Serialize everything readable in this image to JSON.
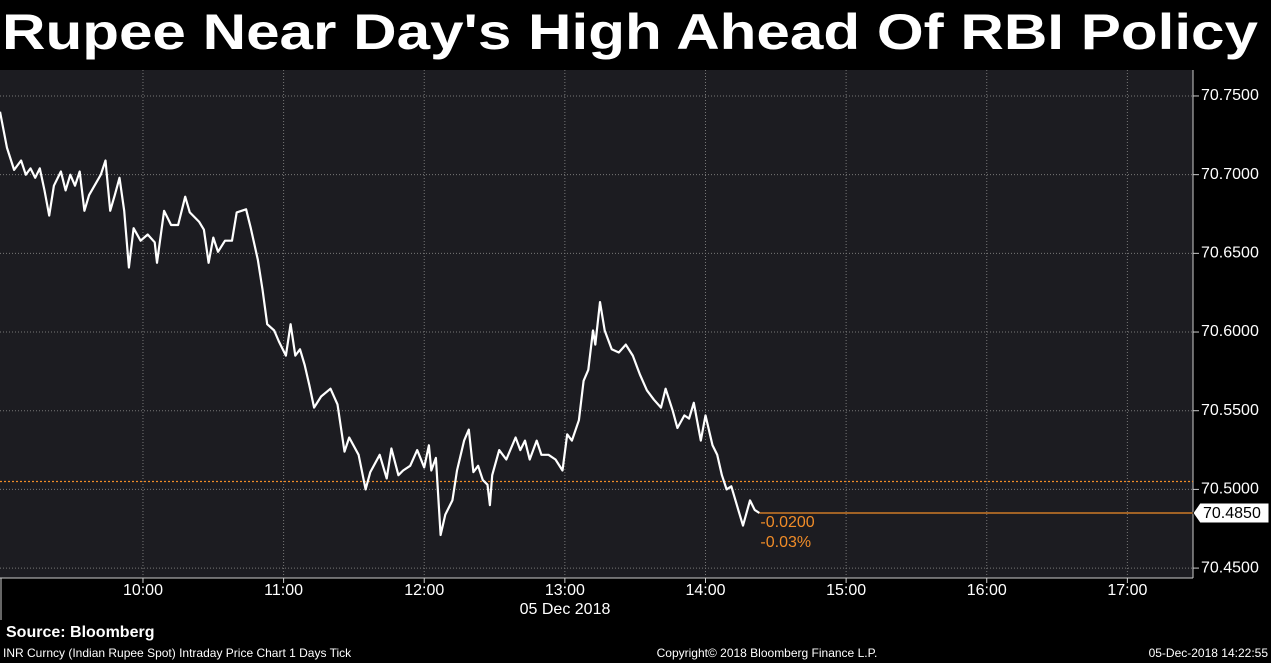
{
  "chart_data": {
    "type": "line",
    "title": "Rupee Near Day's High Ahead Of RBI Policy",
    "x_axis_label": "05 Dec 2018",
    "source": "Source: Bloomberg",
    "footer_left": "INR Curncy (Indian Rupee Spot) Intraday Price Chart 1 Days  Tick",
    "footer_center": "Copyright© 2018 Bloomberg Finance L.P.",
    "footer_right": "05-Dec-2018 14:22:55",
    "color": "#ffffff",
    "x": [
      "08:59",
      "09:02",
      "09:05",
      "09:08",
      "09:10",
      "09:12",
      "09:14",
      "09:16",
      "09:18",
      "09:20",
      "09:22",
      "09:25",
      "09:27",
      "09:29",
      "09:31",
      "09:33",
      "09:35",
      "09:37",
      "09:42",
      "09:44",
      "09:46",
      "09:48",
      "09:50",
      "09:52",
      "09:54",
      "09:56",
      "09:59",
      "10:02",
      "10:05",
      "10:06",
      "10:09",
      "10:12",
      "10:15",
      "10:18",
      "10:20",
      "10:24",
      "10:26",
      "10:28",
      "10:30",
      "10:32",
      "10:35",
      "10:38",
      "10:40",
      "10:44",
      "10:46",
      "10:49",
      "10:51",
      "10:53",
      "10:56",
      "10:58",
      "11:01",
      "11:03",
      "11:05",
      "11:07",
      "11:09",
      "11:11",
      "11:13",
      "11:16",
      "11:20",
      "11:23",
      "11:26",
      "11:28",
      "11:32",
      "11:35",
      "11:37",
      "11:41",
      "11:44",
      "11:46",
      "11:49",
      "11:51",
      "11:54",
      "11:57",
      "12:00",
      "12:02",
      "12:03",
      "12:05",
      "12:07",
      "12:09",
      "12:12",
      "12:14",
      "12:17",
      "12:19",
      "12:21",
      "12:23",
      "12:25",
      "12:27",
      "12:28",
      "12:29",
      "12:32",
      "12:35",
      "12:39",
      "12:41",
      "12:43",
      "12:45",
      "12:48",
      "12:50",
      "12:53",
      "12:56",
      "12:59",
      "13:01",
      "13:03",
      "13:06",
      "13:08",
      "13:10",
      "13:12",
      "13:13",
      "13:15",
      "13:17",
      "13:20",
      "13:23",
      "13:26",
      "13:29",
      "13:32",
      "13:35",
      "13:38",
      "13:41",
      "13:43",
      "13:46",
      "13:48",
      "13:51",
      "13:53",
      "13:55",
      "13:58",
      "14:00",
      "14:03",
      "14:05",
      "14:07",
      "14:09",
      "14:11",
      "14:14",
      "14:16",
      "14:19",
      "14:21",
      "14:23"
    ],
    "values": [
      70.74,
      70.717,
      70.703,
      70.709,
      70.7,
      70.704,
      70.698,
      70.704,
      70.69,
      70.674,
      70.693,
      70.702,
      70.69,
      70.7,
      70.693,
      70.702,
      70.677,
      70.687,
      70.7,
      70.709,
      70.677,
      70.687,
      70.698,
      70.677,
      70.641,
      70.666,
      70.658,
      70.662,
      70.657,
      70.644,
      70.677,
      70.668,
      70.668,
      70.686,
      70.676,
      70.67,
      70.665,
      70.644,
      70.66,
      70.651,
      70.658,
      70.658,
      70.676,
      70.678,
      70.666,
      70.646,
      70.627,
      70.605,
      70.601,
      70.594,
      70.585,
      70.605,
      70.585,
      70.589,
      70.579,
      70.566,
      70.552,
      70.559,
      70.564,
      70.554,
      70.524,
      70.533,
      70.522,
      70.5,
      70.511,
      70.522,
      70.507,
      70.526,
      70.509,
      70.512,
      70.515,
      70.525,
      70.514,
      70.528,
      70.512,
      70.52,
      70.471,
      70.484,
      70.493,
      70.512,
      70.531,
      70.538,
      70.511,
      70.515,
      70.506,
      70.503,
      70.49,
      70.509,
      70.525,
      70.519,
      70.533,
      70.525,
      70.531,
      70.519,
      70.531,
      70.522,
      70.522,
      70.519,
      70.512,
      70.535,
      70.531,
      70.544,
      70.569,
      70.576,
      70.601,
      70.592,
      70.619,
      70.601,
      70.589,
      70.587,
      70.592,
      70.585,
      70.573,
      70.563,
      70.557,
      70.552,
      70.564,
      70.55,
      70.539,
      70.547,
      70.545,
      70.555,
      70.531,
      70.547,
      70.528,
      70.522,
      70.509,
      70.5,
      70.502,
      70.487,
      70.477,
      70.493,
      70.487,
      70.485
    ],
    "last_value_label": "70.4850",
    "annotations": [
      "-0.0200",
      "-0.03%"
    ],
    "annotation_color": "#f08c28",
    "reference_line": 70.505,
    "xlim": [
      "08:59",
      "17:28"
    ],
    "xticks": [
      "10:00",
      "11:00",
      "12:00",
      "13:00",
      "14:00",
      "15:00",
      "16:00",
      "17:00"
    ],
    "ylim": [
      70.4437,
      70.7665
    ],
    "yticks": [
      {
        "value": 70.45,
        "label": "70.4500"
      },
      {
        "value": 70.5,
        "label": "70.5000"
      },
      {
        "value": 70.55,
        "label": "70.5500"
      },
      {
        "value": 70.6,
        "label": "70.6000"
      },
      {
        "value": 70.65,
        "label": "70.6500"
      },
      {
        "value": 70.7,
        "label": "70.7000"
      },
      {
        "value": 70.75,
        "label": "70.7500"
      }
    ],
    "grid": true
  }
}
